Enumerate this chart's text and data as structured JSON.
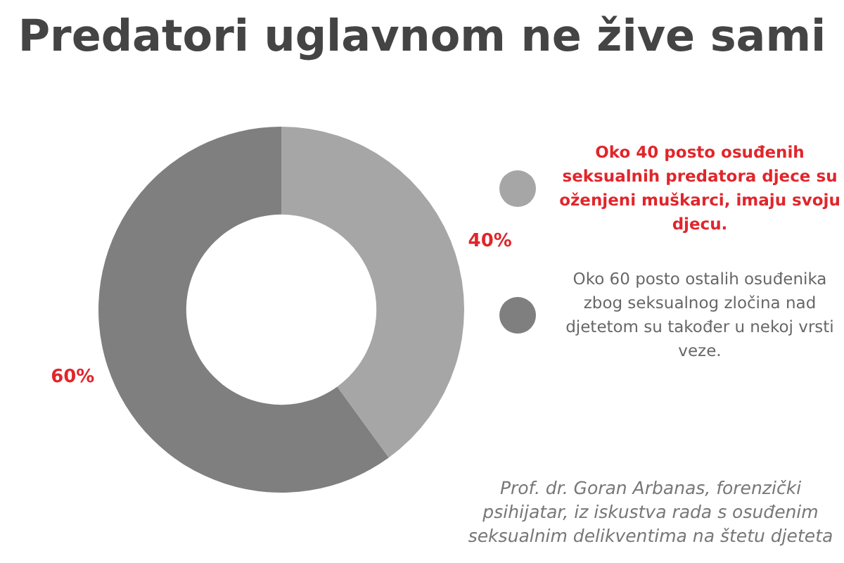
{
  "chart_data": {
    "type": "donut",
    "title": "Predatori uglavnom ne žive sami",
    "categories": [
      "Oko 40 posto osuđenih seksualnih predatora djece su oženjeni muškarci, imaju svoju djecu.",
      "Oko 60 posto ostalih osuđenika zbog seksualnog zločina nad djetetom su također u nekoj vrsti veze."
    ],
    "values": [
      40,
      60
    ],
    "colors": [
      "#a6a6a6",
      "#7f7f7f"
    ],
    "value_labels": [
      "40%",
      "60%"
    ],
    "legend": "right",
    "annotations": [
      "Prof. dr. Goran Arbanas, forenzički psihijatar, iz iskustva rada s osuđenim seksualnim delikventima na štetu djeteta"
    ]
  }
}
